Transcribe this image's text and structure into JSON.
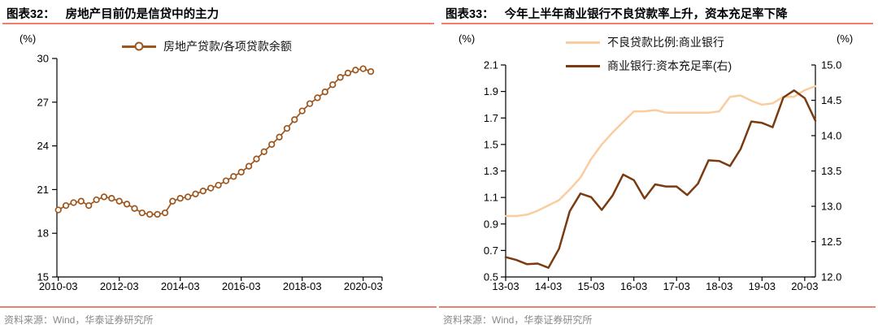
{
  "palette": {
    "rule": "#F07E6F",
    "axis": "#000000",
    "source_text": "#898989"
  },
  "chart_data": [
    {
      "id": "fig32",
      "type": "line",
      "title_prefix": "图表32：",
      "title": "房地产目前仍是信贷中的主力",
      "unit_left": "(%)",
      "source": "资料来源：Wind，华泰证券研究所",
      "legend_position": "top-center",
      "grid": false,
      "ylim_left": [
        15,
        30
      ],
      "yticks_left": [
        "15",
        "18",
        "21",
        "24",
        "27",
        "30"
      ],
      "xticks": [
        "2010-03",
        "2012-03",
        "2014-03",
        "2016-03",
        "2018-03",
        "2020-03"
      ],
      "x": [
        "2010-03",
        "2010-06",
        "2010-09",
        "2010-12",
        "2011-03",
        "2011-06",
        "2011-09",
        "2011-12",
        "2012-03",
        "2012-06",
        "2012-09",
        "2012-12",
        "2013-03",
        "2013-06",
        "2013-09",
        "2013-12",
        "2014-03",
        "2014-06",
        "2014-09",
        "2014-12",
        "2015-03",
        "2015-06",
        "2015-09",
        "2015-12",
        "2016-03",
        "2016-06",
        "2016-09",
        "2016-12",
        "2017-03",
        "2017-06",
        "2017-09",
        "2017-12",
        "2018-03",
        "2018-06",
        "2018-09",
        "2018-12",
        "2019-03",
        "2019-06",
        "2019-09",
        "2019-12",
        "2020-03",
        "2020-06"
      ],
      "series": [
        {
          "name": "房地产贷款/各项贷款余额",
          "axis": "left",
          "marker": "circle",
          "color": "#9D561E",
          "values": [
            19.6,
            19.9,
            20.1,
            20.2,
            19.9,
            20.3,
            20.5,
            20.4,
            20.2,
            20.0,
            19.7,
            19.4,
            19.3,
            19.3,
            19.4,
            20.2,
            20.4,
            20.5,
            20.7,
            20.9,
            21.1,
            21.3,
            21.6,
            21.9,
            22.2,
            22.6,
            23.1,
            23.6,
            24.1,
            24.6,
            25.2,
            25.8,
            26.4,
            26.9,
            27.3,
            27.7,
            28.2,
            28.7,
            29.0,
            29.2,
            29.3,
            29.1
          ]
        }
      ]
    },
    {
      "id": "fig33",
      "type": "line",
      "title_prefix": "图表33：",
      "title": "今年上半年商业银行不良贷款率上升，资本充足率下降",
      "unit_left": "(%)",
      "unit_right": "(%)",
      "source": "资料来源：Wind，华泰证券研究所",
      "legend_position": "top-left",
      "grid": false,
      "ylim_left": [
        0.5,
        2.1
      ],
      "yticks_left": [
        "0.5",
        "0.7",
        "0.9",
        "1.1",
        "1.3",
        "1.5",
        "1.7",
        "1.9",
        "2.1"
      ],
      "ylim_right": [
        12.0,
        15.0
      ],
      "yticks_right": [
        "12.0",
        "12.5",
        "13.0",
        "13.5",
        "14.0",
        "14.5",
        "15.0"
      ],
      "xticks": [
        "13-03",
        "14-03",
        "15-03",
        "16-03",
        "17-03",
        "18-03",
        "19-03",
        "20-03"
      ],
      "x": [
        "13-03",
        "13-06",
        "13-09",
        "13-12",
        "14-03",
        "14-06",
        "14-09",
        "14-12",
        "15-03",
        "15-06",
        "15-09",
        "15-12",
        "16-03",
        "16-06",
        "16-09",
        "16-12",
        "17-03",
        "17-06",
        "17-09",
        "17-12",
        "18-03",
        "18-06",
        "18-09",
        "18-12",
        "19-03",
        "19-06",
        "19-09",
        "19-12",
        "20-03",
        "20-06"
      ],
      "series": [
        {
          "name": "不良贷款比例:商业银行",
          "axis": "left",
          "marker": "none",
          "color": "#FACD9F",
          "values": [
            0.96,
            0.96,
            0.97,
            1.0,
            1.04,
            1.08,
            1.16,
            1.25,
            1.39,
            1.5,
            1.59,
            1.67,
            1.75,
            1.75,
            1.76,
            1.74,
            1.74,
            1.74,
            1.74,
            1.74,
            1.75,
            1.86,
            1.87,
            1.83,
            1.8,
            1.81,
            1.86,
            1.86,
            1.91,
            1.94
          ]
        },
        {
          "name": "商业银行:资本充足率(右)",
          "axis": "right",
          "marker": "none",
          "color": "#7A3B10",
          "values": [
            12.28,
            12.24,
            12.18,
            12.19,
            12.13,
            12.4,
            12.93,
            13.18,
            13.13,
            12.95,
            13.15,
            13.45,
            13.37,
            13.11,
            13.31,
            13.28,
            13.28,
            13.16,
            13.32,
            13.65,
            13.64,
            13.57,
            13.81,
            14.2,
            14.18,
            14.12,
            14.54,
            14.64,
            14.53,
            14.21
          ]
        }
      ]
    }
  ]
}
